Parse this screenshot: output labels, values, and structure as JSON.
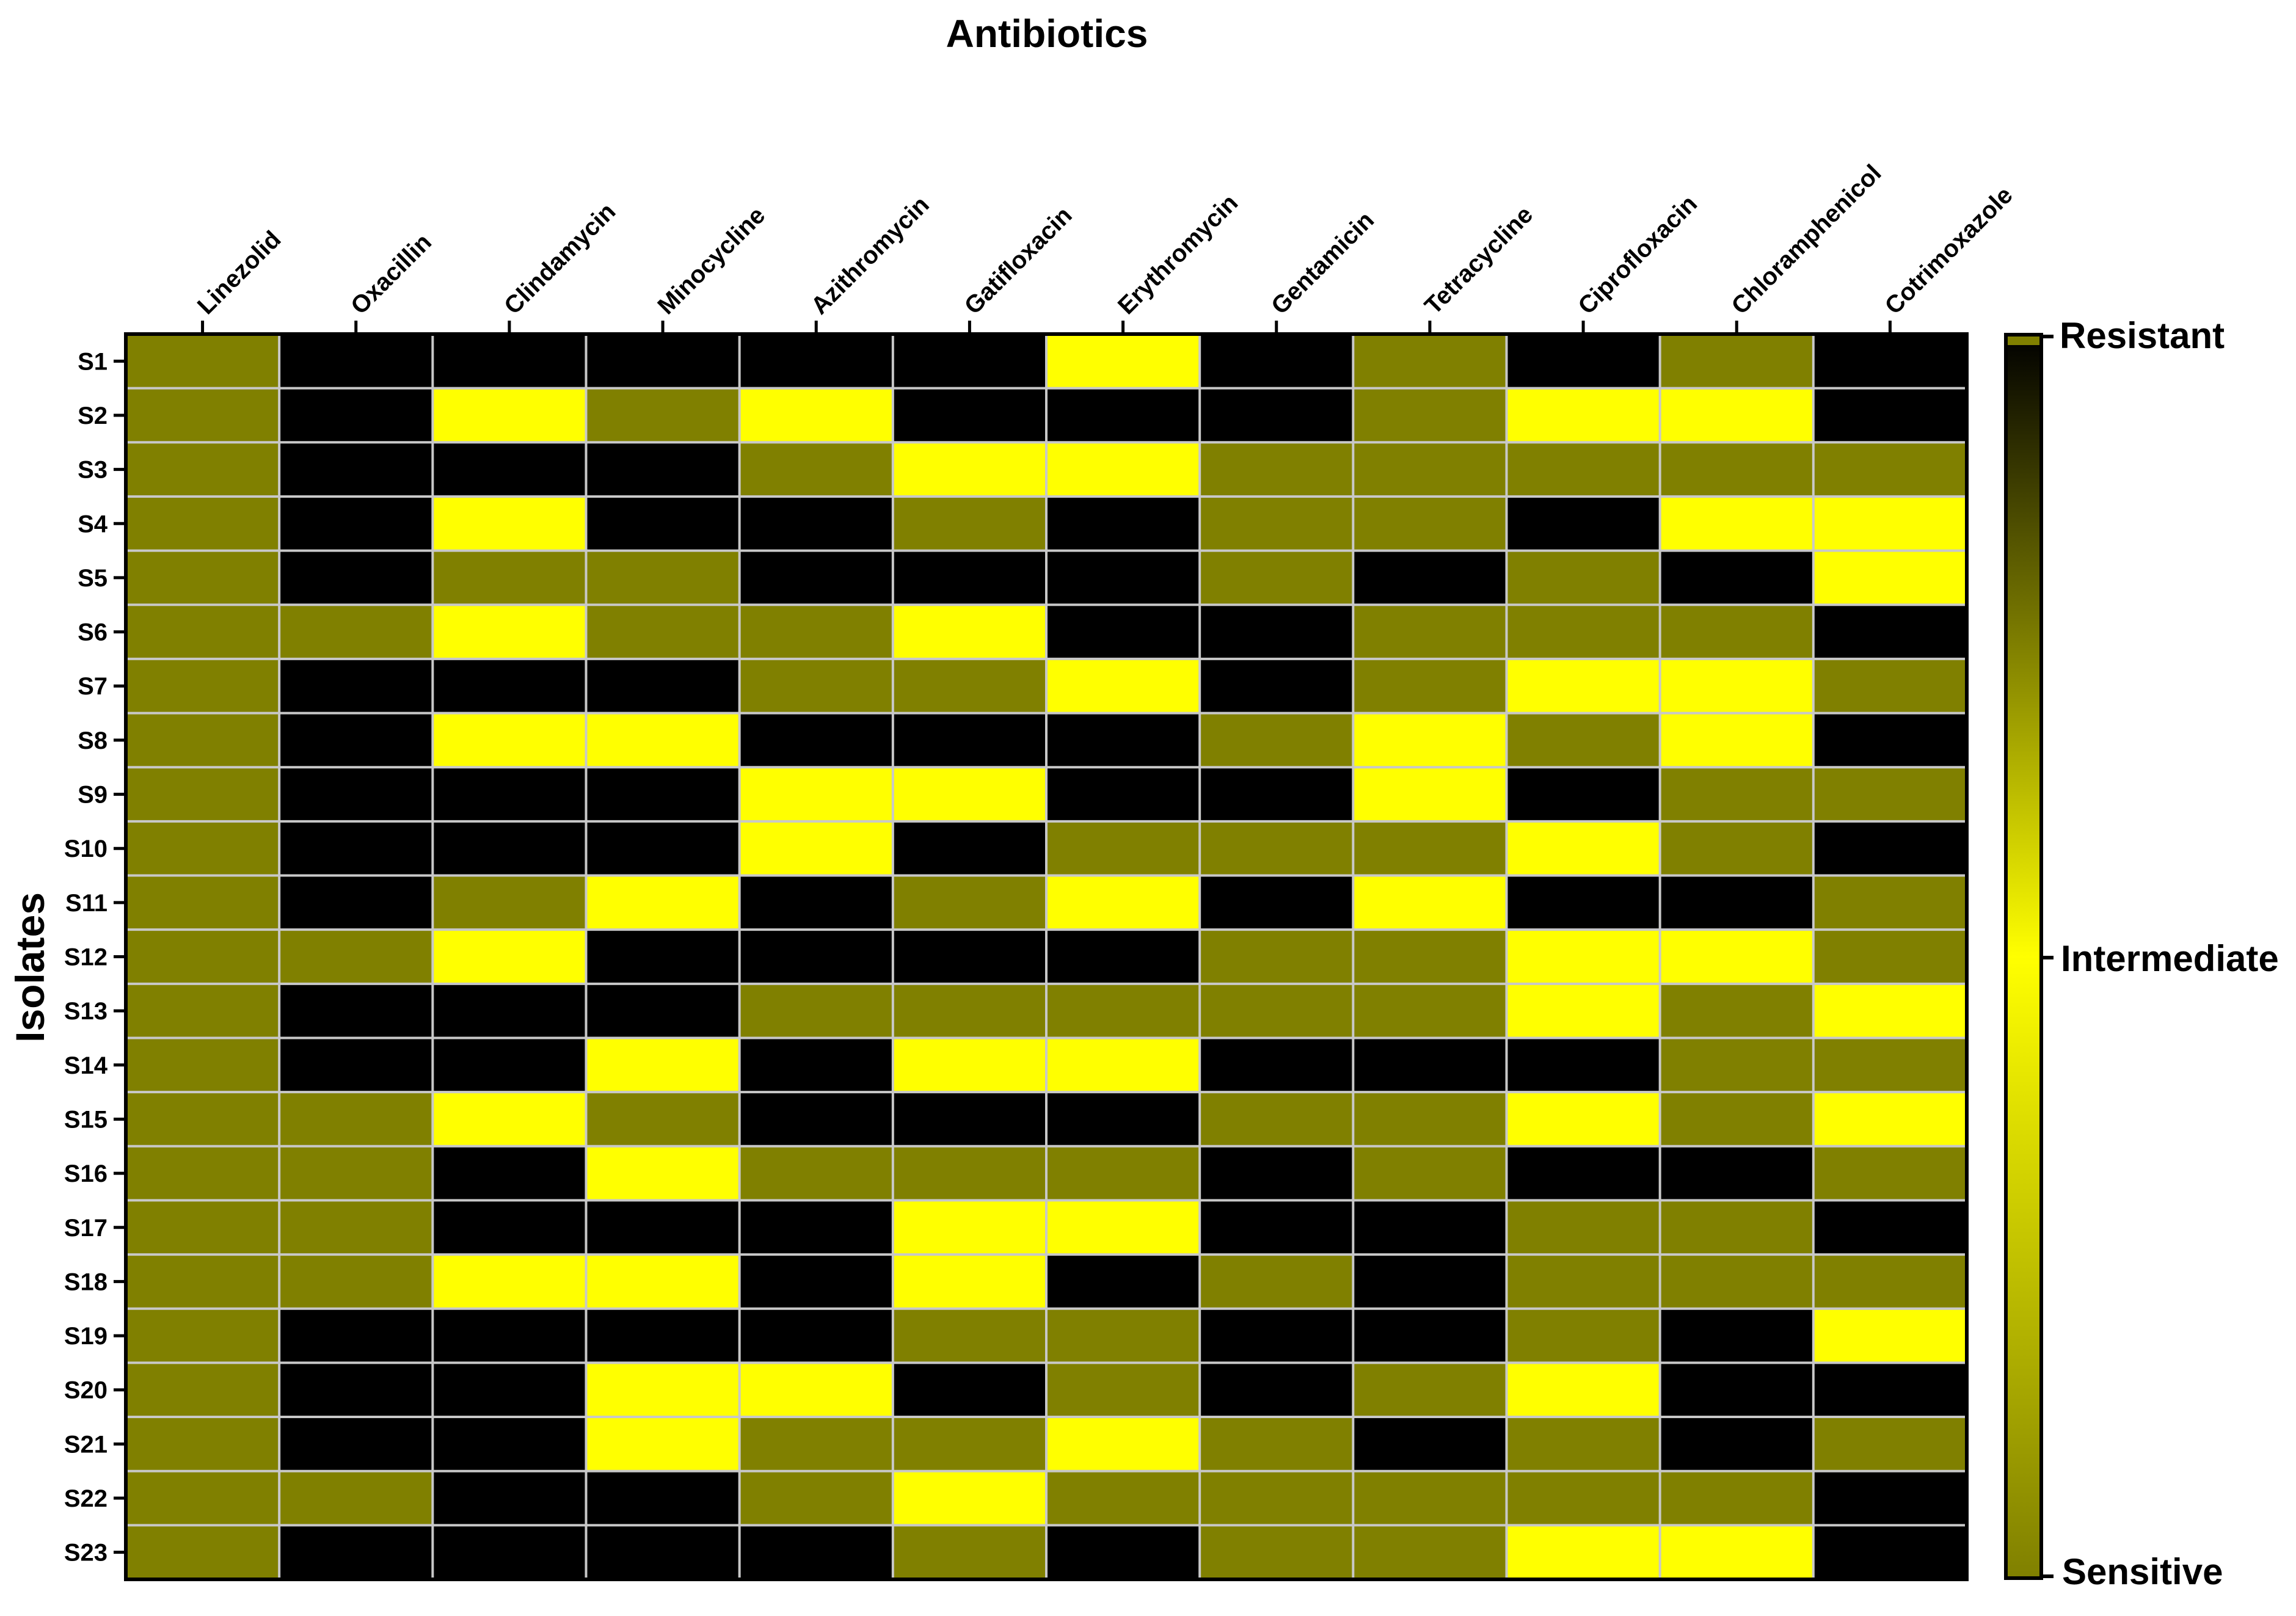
{
  "chart_data": {
    "type": "heatmap",
    "title": "Antibiotics",
    "xlabel": "Antibiotics",
    "ylabel": "Isolates",
    "columns": [
      "Linezolid",
      "Oxacillin",
      "Clindamycin",
      "Minocycline",
      "Azithromycin",
      "Gatifloxacin",
      "Erythromycin",
      "Gentamicin",
      "Tetracycline",
      "Ciprofloxacin",
      "Chloramphenicol",
      "Cotrimoxazole"
    ],
    "rows": [
      "S1",
      "S2",
      "S3",
      "S4",
      "S5",
      "S6",
      "S7",
      "S8",
      "S9",
      "S10",
      "S11",
      "S12",
      "S13",
      "S14",
      "S15",
      "S16",
      "S17",
      "S18",
      "S19",
      "S20",
      "S21",
      "S22",
      "S23"
    ],
    "value_codes": {
      "S": "Sensitive",
      "I": "Intermediate",
      "R": "Resistant"
    },
    "values": [
      [
        "S",
        "R",
        "R",
        "R",
        "R",
        "R",
        "I",
        "R",
        "S",
        "R",
        "S",
        "R"
      ],
      [
        "S",
        "R",
        "I",
        "S",
        "I",
        "R",
        "R",
        "R",
        "S",
        "I",
        "I",
        "R"
      ],
      [
        "S",
        "R",
        "R",
        "R",
        "S",
        "I",
        "I",
        "S",
        "S",
        "S",
        "S",
        "S"
      ],
      [
        "S",
        "R",
        "I",
        "R",
        "R",
        "S",
        "R",
        "S",
        "S",
        "R",
        "I",
        "I"
      ],
      [
        "S",
        "R",
        "S",
        "S",
        "R",
        "R",
        "R",
        "S",
        "R",
        "S",
        "R",
        "I"
      ],
      [
        "S",
        "S",
        "I",
        "S",
        "S",
        "I",
        "R",
        "R",
        "S",
        "S",
        "S",
        "R"
      ],
      [
        "S",
        "R",
        "R",
        "R",
        "S",
        "S",
        "I",
        "R",
        "S",
        "I",
        "I",
        "S"
      ],
      [
        "S",
        "R",
        "I",
        "I",
        "R",
        "R",
        "R",
        "S",
        "I",
        "S",
        "I",
        "R"
      ],
      [
        "S",
        "R",
        "R",
        "R",
        "I",
        "I",
        "R",
        "R",
        "I",
        "R",
        "S",
        "S"
      ],
      [
        "S",
        "R",
        "R",
        "R",
        "I",
        "R",
        "S",
        "S",
        "S",
        "I",
        "S",
        "R"
      ],
      [
        "S",
        "R",
        "S",
        "I",
        "R",
        "S",
        "I",
        "R",
        "I",
        "R",
        "R",
        "S"
      ],
      [
        "S",
        "S",
        "I",
        "R",
        "R",
        "R",
        "R",
        "S",
        "S",
        "I",
        "I",
        "S"
      ],
      [
        "S",
        "R",
        "R",
        "R",
        "S",
        "S",
        "S",
        "S",
        "S",
        "I",
        "S",
        "I"
      ],
      [
        "S",
        "R",
        "R",
        "I",
        "R",
        "I",
        "I",
        "R",
        "R",
        "R",
        "S",
        "S"
      ],
      [
        "S",
        "S",
        "I",
        "S",
        "R",
        "R",
        "R",
        "S",
        "S",
        "I",
        "S",
        "I"
      ],
      [
        "S",
        "S",
        "R",
        "I",
        "S",
        "S",
        "S",
        "R",
        "S",
        "R",
        "R",
        "S"
      ],
      [
        "S",
        "S",
        "R",
        "R",
        "R",
        "I",
        "I",
        "R",
        "R",
        "S",
        "S",
        "R"
      ],
      [
        "S",
        "S",
        "I",
        "I",
        "R",
        "I",
        "R",
        "S",
        "R",
        "S",
        "S",
        "S"
      ],
      [
        "S",
        "R",
        "R",
        "R",
        "R",
        "S",
        "S",
        "R",
        "R",
        "S",
        "R",
        "I"
      ],
      [
        "S",
        "R",
        "R",
        "I",
        "I",
        "R",
        "S",
        "R",
        "S",
        "I",
        "R",
        "R"
      ],
      [
        "S",
        "R",
        "R",
        "I",
        "S",
        "S",
        "I",
        "S",
        "R",
        "S",
        "R",
        "S"
      ],
      [
        "S",
        "S",
        "R",
        "R",
        "S",
        "I",
        "S",
        "S",
        "S",
        "S",
        "S",
        "R"
      ],
      [
        "S",
        "R",
        "R",
        "R",
        "R",
        "S",
        "R",
        "S",
        "S",
        "I",
        "I",
        "R"
      ]
    ],
    "colorscale": {
      "Sensitive": "#808000",
      "Intermediate": "#ffff00",
      "Resistant": "#000000"
    },
    "legend": {
      "labels": [
        "Resistant",
        "Intermediate",
        "Sensitive"
      ],
      "placement": "right"
    }
  }
}
